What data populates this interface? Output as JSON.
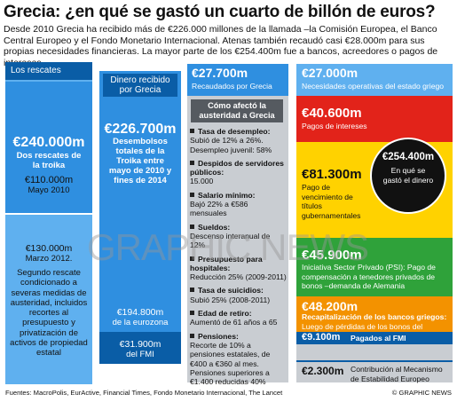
{
  "title": "Grecia: ¿en qué se gastó un cuarto de billón de euros?",
  "intro": "Desde 2010 Grecia ha recibido más de €226.000 millones de la llamada –la Comisión Europea, el Banco Central Europeo y el Fondo Monetario Internacional. Atenas también recaudó casi €28.000m para sus propias necesidades financieras. La mayor parte de los €254.400m fue a bancos, acreedores o pagos de intereses",
  "col1": {
    "header": "Los rescates",
    "total_amount": "€240.000m",
    "total_label": "Dos rescates de la troika",
    "first_amount": "€110.000m",
    "first_date": "Mayo 2010",
    "second_amount": "€130.000m",
    "second_date": "Marzo 2012.",
    "second_desc": "Segundo rescate condicionado a severas medidas de austeridad, incluidos recortes al presupuesto y privatización de activos de propiedad estatal"
  },
  "col2": {
    "header": "Dinero recibido por Grecia",
    "total_amount": "€226.700m",
    "total_desc": "Desembolsos totales de la Troika entre mayo de 2010 y fines de 2014",
    "eurozone_amount": "€194.800m",
    "eurozone_label": "de la eurozona",
    "imf_amount": "€31.900m",
    "imf_label": "del FMI"
  },
  "col3": {
    "header_amount": "€27.700m",
    "header_label": "Recaudados por Grecia",
    "subheader": "Cómo afectó la austeridad a Grecia",
    "items": [
      {
        "head": "Tasa de desempleo:",
        "text": "Subió de 12% a 26%. Desempleo juvenil: 58%"
      },
      {
        "head": "Despidos de servidores públicos:",
        "text": "15.000"
      },
      {
        "head": "Salario mínimo:",
        "text": "Bajó 22% a €586 mensuales"
      },
      {
        "head": "Sueldos:",
        "text": "Descenso interanual de 12%"
      },
      {
        "head": "Presupuesto para hospitales:",
        "text": "Reducción 25% (2009-2011)"
      },
      {
        "head": "Tasa de suicidios:",
        "text": "Subió 25% (2008-2011)"
      },
      {
        "head": "Edad de retiro:",
        "text": "Aumentó de 61 años a 65"
      },
      {
        "head": "Pensiones:",
        "text": "Recorte de 10% a pensiones estatales, de €400 a €360 al mes. Pensiones superiores a €1.400 reducidas 40%"
      }
    ]
  },
  "col4": {
    "ops_amount": "€27.000m",
    "ops_label": "Necesidades operativas del estado griego",
    "interest_amount": "€40.600m",
    "interest_label": "Pagos de intereses",
    "debt_amount": "€81.300m",
    "debt_label": "Pago de vencimiento de títulos gubernamentales",
    "psi_amount": "€45.900m",
    "psi_label": "Iniciativa Sector Privado (PSI): Pago de compensación a tenedores privados de bonos –demanda de Alemania",
    "banks_amount": "€48.200m",
    "banks_label": "Recapitalización de los bancos griegos:",
    "banks_desc": "Luego de pérdidas de los bonos del gobierno bajo la PSI",
    "imf_amount": "€9.100m",
    "imf_label": "Pagados al FMI",
    "esm_amount": "€2.300m",
    "esm_label": "Contribución al Mecanismo de Estabilidad Europeo",
    "circle_amount": "€254.400m",
    "circle_label": "En qué se gastó el dinero"
  },
  "watermark": "GRAPHIC NEWS",
  "sources": "Fuentes: MacroPolis, EurActive, Financial Times, Fondo Monetario Internacional, The Lancet",
  "copyright": "© GRAPHIC NEWS",
  "colors": {
    "dark_blue": "#0a5da6",
    "mid_blue": "#2f8fe0",
    "light_blue": "#5fb0ef",
    "red": "#e2231a",
    "yellow": "#ffd200",
    "green": "#2fa23a",
    "orange": "#f39200",
    "grey": "#c9cdd2"
  }
}
